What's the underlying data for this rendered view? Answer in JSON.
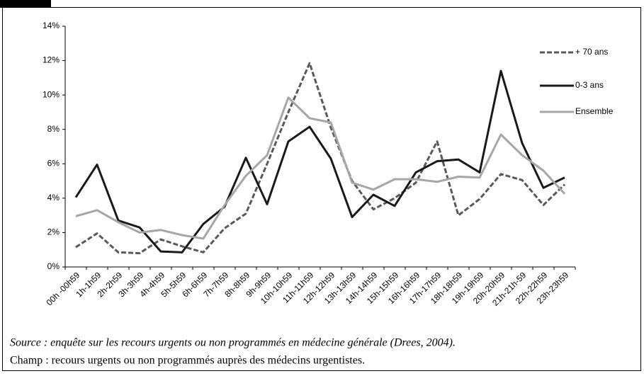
{
  "chart_data": {
    "type": "line",
    "categories": [
      "00h -00h59",
      "1h-1h59",
      "2h-2h59",
      "3h-3h59",
      "4h-4h59",
      "5h-5h59",
      "6h-6h59",
      "7h-7h59",
      "8h-8h59",
      "9h-9h59",
      "10h-10h59",
      "11h-11h59",
      "12h-12h59",
      "13h-13h59",
      "14h-14h59",
      "15h-15h59",
      "16h-16h59",
      "17h-17h59",
      "18h-18h59",
      "19h-19h59",
      "20h-20h59",
      "21h-21h-59",
      "22h-22h59",
      "23h-23h59"
    ],
    "series": [
      {
        "name": "+ 70 ans",
        "color": "#595959",
        "dashed": true,
        "values": [
          1.15,
          1.95,
          0.85,
          0.8,
          1.6,
          1.2,
          0.85,
          2.25,
          3.1,
          6.0,
          9.0,
          11.85,
          8.1,
          5.0,
          3.35,
          4.0,
          4.9,
          7.3,
          3.0,
          3.95,
          5.4,
          5.05,
          3.6,
          4.8
        ]
      },
      {
        "name": "0-3 ans",
        "color": "#1a1a1a",
        "dashed": false,
        "values": [
          4.05,
          5.95,
          2.7,
          2.3,
          0.9,
          0.85,
          2.5,
          3.5,
          6.35,
          3.65,
          7.3,
          8.15,
          6.3,
          2.9,
          4.2,
          3.55,
          5.5,
          6.15,
          6.25,
          5.5,
          11.4,
          7.2,
          4.6,
          5.2
        ]
      },
      {
        "name": "Ensemble",
        "color": "#a6a6a6",
        "dashed": false,
        "values": [
          2.95,
          3.3,
          2.6,
          2.0,
          2.15,
          1.85,
          1.65,
          3.6,
          5.3,
          6.5,
          9.85,
          8.65,
          8.4,
          4.9,
          4.5,
          5.1,
          5.1,
          4.95,
          5.25,
          5.2,
          7.7,
          6.5,
          5.6,
          4.25
        ]
      }
    ],
    "ylim": [
      0,
      14
    ],
    "yticks": [
      {
        "value": 0,
        "label": "0%"
      },
      {
        "value": 2,
        "label": "2%"
      },
      {
        "value": 4,
        "label": "4%"
      },
      {
        "value": 6,
        "label": "6%"
      },
      {
        "value": 8,
        "label": "8%"
      },
      {
        "value": 10,
        "label": "10%"
      },
      {
        "value": 12,
        "label": "12%"
      },
      {
        "value": 14,
        "label": "14%"
      }
    ],
    "grid": false,
    "legend": "top-right",
    "notes": [
      "Source : enquête sur les recours urgents ou non programmés en médecine générale (Drees, 2004).",
      "Champ : recours urgents ou non programmés auprès des médecins urgentistes."
    ]
  }
}
